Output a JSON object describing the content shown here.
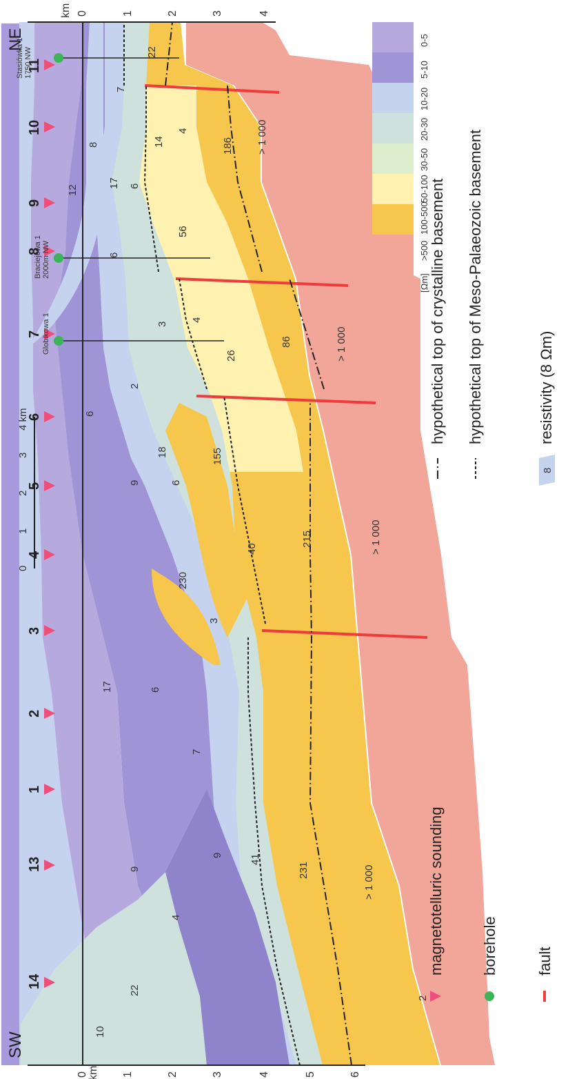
{
  "profile": {
    "ends": {
      "left": "SW",
      "right": "NE"
    },
    "depth_axis": {
      "unit": "km",
      "ticks": [
        "0",
        "1",
        "2",
        "3",
        "4",
        "5",
        "6"
      ]
    },
    "right_axis": {
      "unit": "km",
      "ticks": [
        "0",
        "1",
        "2",
        "3",
        "4"
      ]
    },
    "scale_bar": {
      "ticks": [
        "0",
        "1",
        "2",
        "3",
        "4 km"
      ]
    },
    "soundings": [
      "14",
      "13",
      "1",
      "2",
      "3",
      "4",
      "5",
      "6",
      "7",
      "8",
      "9",
      "10",
      "11"
    ],
    "boreholes": [
      {
        "name": "Globikowa 1",
        "note": ""
      },
      {
        "name": "Braciejowa 1",
        "note": "2000m NW"
      },
      {
        "name": "Stasiówka 1",
        "note": "1750 NW"
      }
    ],
    "resistivity_labels": [
      "10",
      "22",
      "4",
      "9",
      "9",
      "41",
      "231",
      "> 1 000",
      "17",
      "6",
      "7",
      "3",
      "230",
      "40",
      "215",
      "> 1 000",
      "9",
      "6",
      "6",
      "18",
      "155",
      "2",
      "3",
      "26",
      "86",
      "> 1 000",
      "4",
      "6",
      "56",
      "12",
      "17",
      "6",
      "8",
      "14",
      "4",
      "186",
      "> 1 000",
      "7",
      "22"
    ]
  },
  "colorbar": {
    "unit": "[Ωm]",
    "classes": [
      {
        "label": "0-5",
        "color": "#b5a9de"
      },
      {
        "label": "5-10",
        "color": "#9f94d6"
      },
      {
        "label": "10-20",
        "color": "#c5d3ee"
      },
      {
        "label": "20-30",
        "color": "#cfe1dc"
      },
      {
        "label": "30-50",
        "color": "#dcedcb"
      },
      {
        "label": "50-100",
        "color": "#fff2b0"
      },
      {
        "label": "100-500",
        "color": "#f6c74c"
      },
      {
        "label": ">500",
        "color": "#f2a69a"
      }
    ]
  },
  "legend": {
    "sounding": "magnetotelluric sounding",
    "sounding_example": "2",
    "borehole": "borehole",
    "fault": "fault",
    "crystalline": "hypothetical top of crystalline basement",
    "meso": "hypothetical top of Meso-Palaeozoic basement",
    "resistivity": "resistivity  (8 Ωm)",
    "resistivity_example": "8"
  },
  "colors": {
    "fault": "#ee3b3b",
    "sounding": "#ee4f7a",
    "borehole": "#3db35a",
    "very_low": "#8f84cc",
    "low": "#a79bdc",
    "blue": "#c5d3ee",
    "green": "#cfe1dc",
    "yellow": "#fff2b0",
    "orange": "#f6c74c",
    "salmon": "#f2a69a"
  }
}
